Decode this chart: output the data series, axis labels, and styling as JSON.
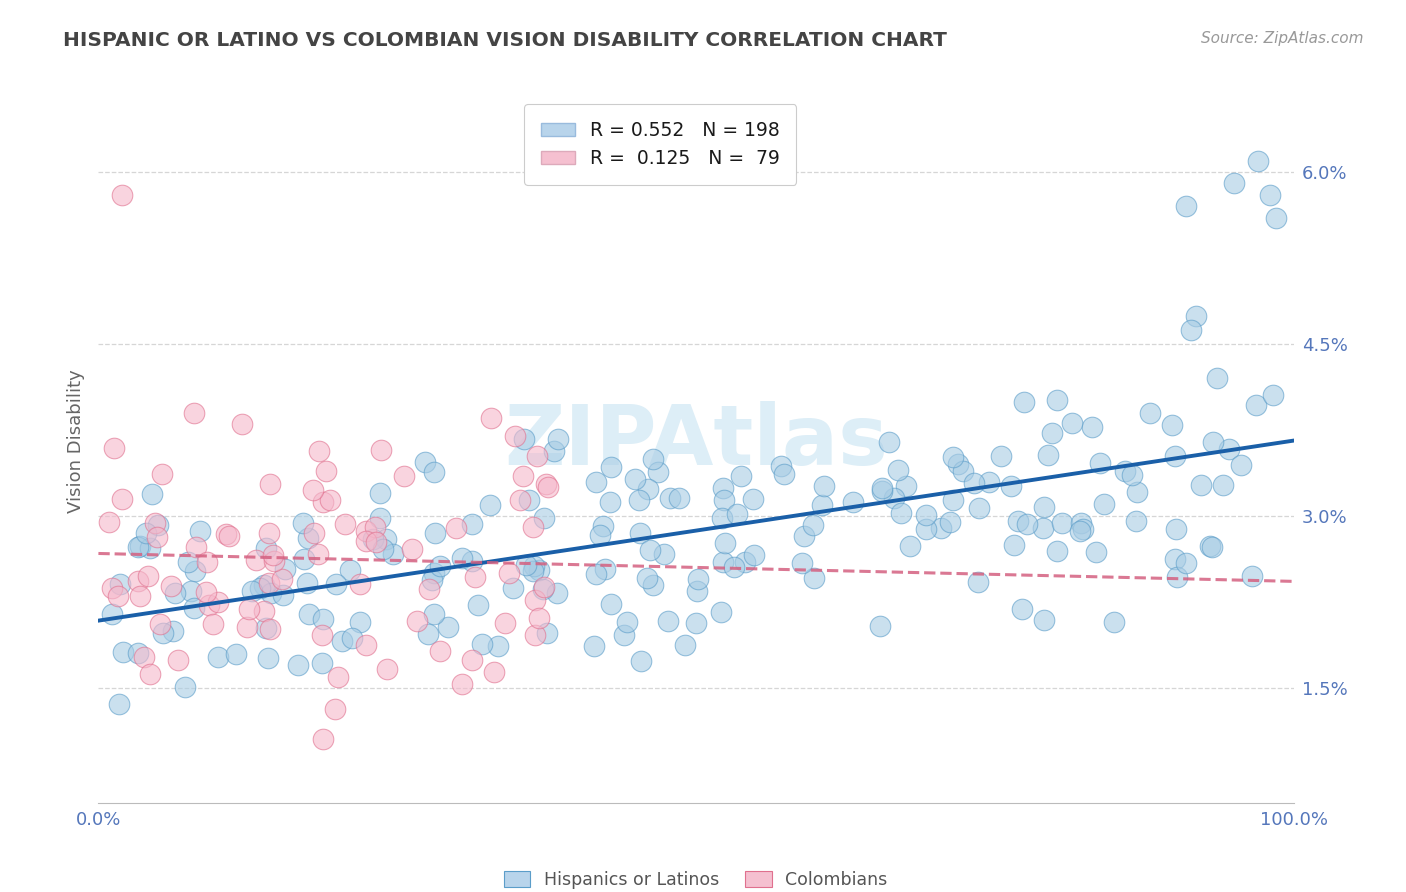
{
  "title": "HISPANIC OR LATINO VS COLOMBIAN VISION DISABILITY CORRELATION CHART",
  "source": "Source: ZipAtlas.com",
  "ylabel": "Vision Disability",
  "r_blue": 0.552,
  "n_blue": 198,
  "r_pink": 0.125,
  "n_pink": 79,
  "blue_color": "#a8cce4",
  "blue_edge_color": "#5b9dc9",
  "pink_color": "#f5b8cb",
  "pink_edge_color": "#e0708e",
  "blue_line_color": "#1a5fa8",
  "pink_line_color": "#d46080",
  "watermark_color": "#ddeef7",
  "background_color": "#ffffff",
  "grid_color": "#cccccc",
  "title_color": "#444444",
  "tick_color": "#5577bb",
  "legend_color_blue": "#b8d4eb",
  "legend_color_pink": "#f5c0d0",
  "xlim": [
    0.0,
    1.0
  ],
  "ylim": [
    0.005,
    0.068
  ],
  "yticks": [
    0.015,
    0.03,
    0.045,
    0.06
  ],
  "ytick_labels": [
    "1.5%",
    "3.0%",
    "4.5%",
    "6.0%"
  ],
  "xticks": [
    0.0,
    1.0
  ],
  "xtick_labels": [
    "0.0%",
    "100.0%"
  ],
  "bottom_labels": [
    "Hispanics or Latinos",
    "Colombians"
  ]
}
